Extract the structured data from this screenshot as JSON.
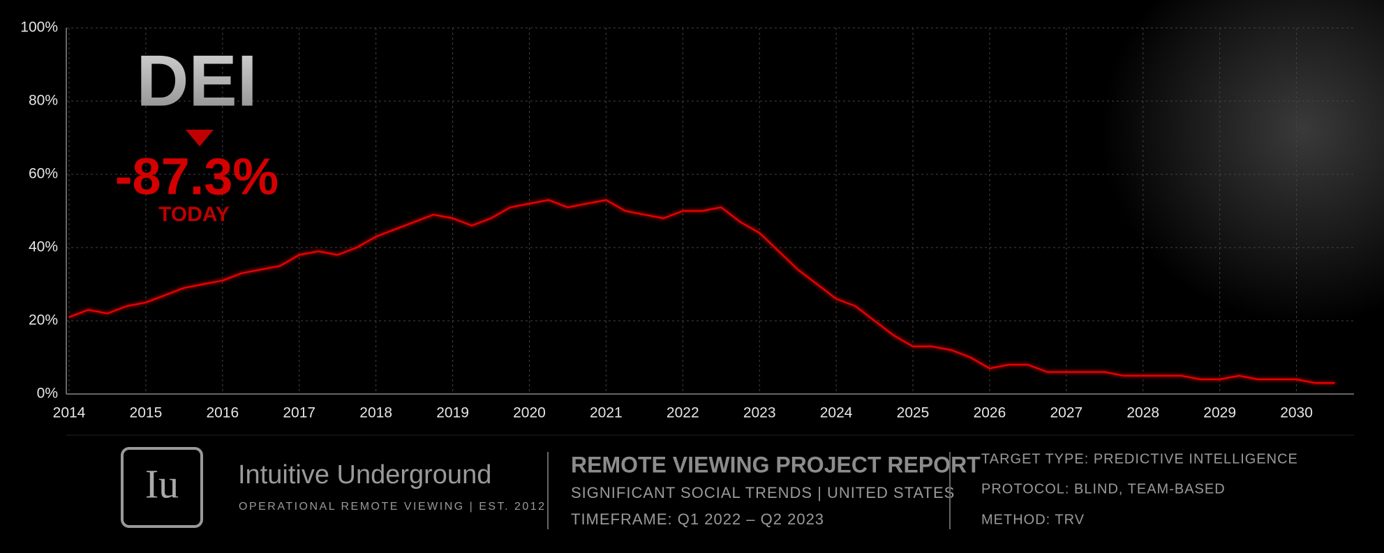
{
  "chart_data": {
    "type": "line",
    "x": [
      2014,
      2014.25,
      2014.5,
      2014.75,
      2015,
      2015.25,
      2015.5,
      2015.75,
      2016,
      2016.25,
      2016.5,
      2016.75,
      2017,
      2017.25,
      2017.5,
      2017.75,
      2018,
      2018.25,
      2018.5,
      2018.75,
      2019,
      2019.25,
      2019.5,
      2019.75,
      2020,
      2020.25,
      2020.5,
      2020.75,
      2021,
      2021.25,
      2021.5,
      2021.75,
      2022,
      2022.25,
      2022.5,
      2022.75,
      2023,
      2023.25,
      2023.5,
      2023.75,
      2024,
      2024.25,
      2024.5,
      2024.75,
      2025,
      2025.25,
      2025.5,
      2025.75,
      2026,
      2026.25,
      2026.5,
      2026.75,
      2027,
      2027.25,
      2027.5,
      2027.75,
      2028,
      2028.25,
      2028.5,
      2028.75,
      2029,
      2029.25,
      2029.5,
      2029.75,
      2030,
      2030.25,
      2030.5
    ],
    "values": [
      21,
      23,
      22,
      24,
      25,
      27,
      29,
      30,
      31,
      33,
      34,
      35,
      38,
      39,
      38,
      40,
      43,
      45,
      47,
      49,
      48,
      46,
      48,
      51,
      52,
      53,
      51,
      52,
      53,
      50,
      49,
      48,
      50,
      50,
      51,
      47,
      44,
      39,
      34,
      30,
      26,
      24,
      20,
      16,
      13,
      13,
      12,
      10,
      7,
      8,
      8,
      6,
      6,
      6,
      6,
      5,
      5,
      5,
      5,
      4,
      4,
      5,
      4,
      4,
      4,
      3,
      3
    ],
    "color": "#e60000",
    "xlim": [
      2014,
      2030.75
    ],
    "xticks": [
      2014,
      2015,
      2016,
      2017,
      2018,
      2019,
      2020,
      2021,
      2022,
      2023,
      2024,
      2025,
      2026,
      2027,
      2028,
      2029,
      2030
    ],
    "ylim": [
      0,
      100
    ],
    "yticks": [
      {
        "value": 0,
        "label": "0%"
      },
      {
        "value": 20,
        "label": "20%"
      },
      {
        "value": 40,
        "label": "40%"
      },
      {
        "value": 60,
        "label": "60%"
      },
      {
        "value": 80,
        "label": "80%"
      },
      {
        "value": 100,
        "label": "100%"
      }
    ],
    "grid": true,
    "annotations": {
      "label": "DEI",
      "change": "-87.3%",
      "note": "TODAY"
    }
  },
  "footer": {
    "logo": "Iu",
    "brand": "Intuitive Underground",
    "tagline": "OPERATIONAL REMOTE VIEWING | EST. 2012",
    "report_title": "REMOTE VIEWING PROJECT REPORT",
    "report_subtitle": "SIGNIFICANT SOCIAL TRENDS | UNITED STATES",
    "timeframe": "TIMEFRAME: Q1 2022 – Q2 2023",
    "details": [
      "TARGET TYPE: PREDICTIVE INTELLIGENCE",
      "PROTOCOL: BLIND, TEAM-BASED",
      "METHOD: TRV"
    ]
  }
}
